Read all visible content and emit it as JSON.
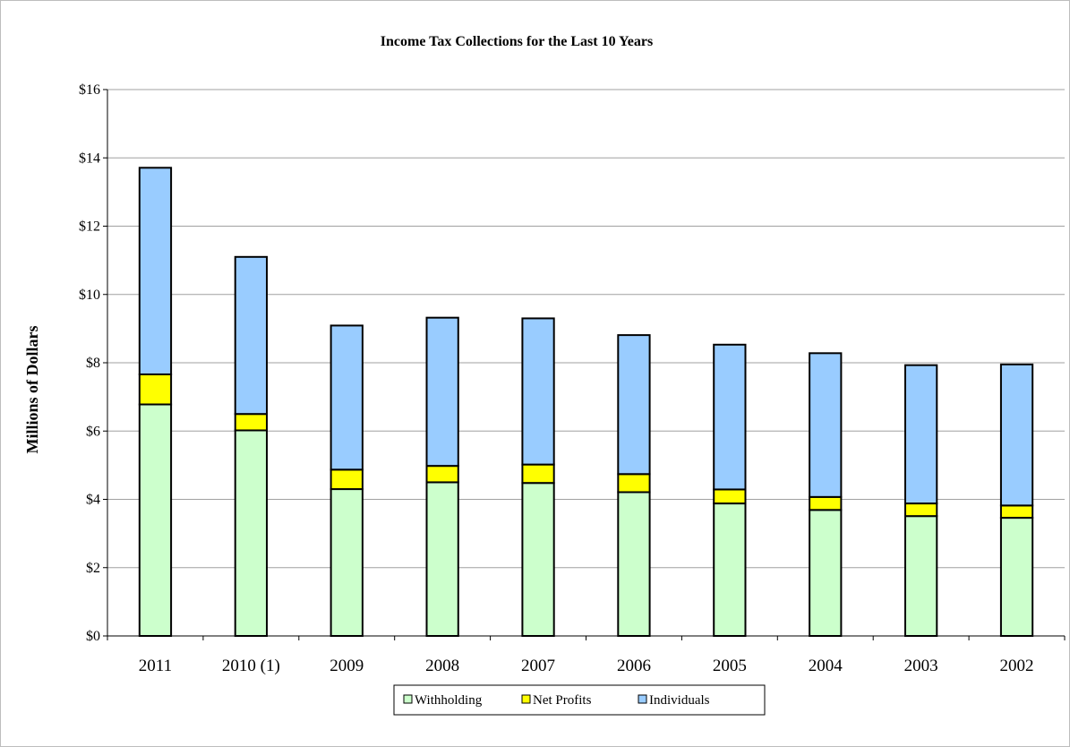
{
  "chart_data": {
    "type": "bar",
    "stacked": true,
    "title": "Income Tax Collections for the Last 10 Years",
    "ylabel": "Millions of Dollars",
    "xlabel": "",
    "ylim": [
      0,
      16
    ],
    "yticks": [
      0,
      2,
      4,
      6,
      8,
      10,
      12,
      14,
      16
    ],
    "ytick_labels": [
      "$0",
      "$2",
      "$4",
      "$6",
      "$8",
      "$10",
      "$12",
      "$14",
      "$16"
    ],
    "grid": true,
    "legend_position": "bottom",
    "categories": [
      "2011",
      "2010 (1)",
      "2009",
      "2008",
      "2007",
      "2006",
      "2005",
      "2004",
      "2003",
      "2002"
    ],
    "series": [
      {
        "name": "Withholding",
        "color": "#ccffcc",
        "values": [
          6.78,
          6.02,
          4.3,
          4.5,
          4.48,
          4.21,
          3.88,
          3.69,
          3.51,
          3.46
        ]
      },
      {
        "name": "Net Profits",
        "color": "#ffff00",
        "values": [
          0.88,
          0.48,
          0.57,
          0.48,
          0.54,
          0.53,
          0.41,
          0.38,
          0.37,
          0.36
        ]
      },
      {
        "name": "Individuals",
        "color": "#99ccff",
        "values": [
          6.05,
          4.6,
          4.22,
          4.34,
          4.28,
          4.07,
          4.24,
          4.21,
          4.05,
          4.13
        ]
      }
    ]
  }
}
